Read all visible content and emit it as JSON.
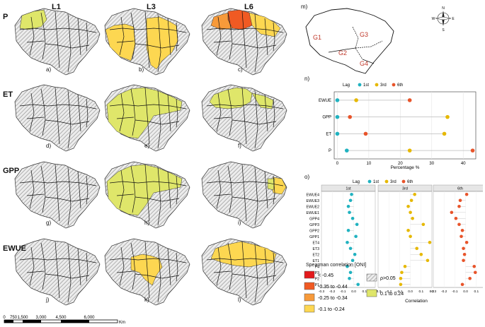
{
  "columns": [
    "L1",
    "L3",
    "L6"
  ],
  "rows": [
    "P",
    "ET",
    "GPP",
    "EWUE"
  ],
  "panel_letters": [
    "a)",
    "b)",
    "c)",
    "d)",
    "e)",
    "f)",
    "g)",
    "h)",
    "i)",
    "j)",
    "k)",
    "l)"
  ],
  "map_fills": [
    [
      "lightyellow-northwest",
      "yellow-west-central",
      "orange-north"
    ],
    [
      "none",
      "lightyellow-large",
      "lightyellow-north"
    ],
    [
      "none",
      "lightyellow-large",
      "yellow-northeast"
    ],
    [
      "none",
      "yellow-central",
      "yellow-north"
    ]
  ],
  "region_map": {
    "title": "m)",
    "regions": [
      "G1",
      "G2",
      "G3",
      "G4"
    ],
    "compass": [
      "N",
      "E",
      "S",
      "W"
    ]
  },
  "scale_bar": {
    "ticks": [
      "0",
      "750",
      "1,500",
      "3,000",
      "4,500",
      "6,000"
    ],
    "unit": "Km"
  },
  "colors": {
    "lag1": "#20b2c0",
    "lag3": "#e6b800",
    "lag6": "#e8542a",
    "lt045": "#e31a1c",
    "c035": "#f05a23",
    "c025": "#f79a3a",
    "c01": "#fdd751",
    "pos": "#dfe66a",
    "gray": "#d0d0d0"
  },
  "legend": {
    "title": "Spearman correlation [ONI]",
    "items": [
      {
        "label": "< -0.45",
        "color": "#e31a1c"
      },
      {
        "label": "-0.35 to -0.44",
        "color": "#f05a23"
      },
      {
        "label": "-0.25 to -0.34",
        "color": "#f79a3a"
      },
      {
        "label": "-0.1 to -0.24",
        "color": "#fdd751"
      },
      {
        "label": "ρ>0.05",
        "color": "hatch"
      },
      {
        "label": "0.1 to 0.24",
        "color": "#dfe66a"
      }
    ]
  },
  "chart_n": {
    "panel": "n)",
    "legend_title": "Lag",
    "lag_names": [
      "1st",
      "3rd",
      "6th"
    ],
    "xlabel": "Percentage %"
  },
  "chart_o": {
    "panel": "o)",
    "legend_title": "Lag",
    "lag_names": [
      "1st",
      "3rd",
      "6th"
    ],
    "facets": [
      "1st",
      "3rd",
      "6th"
    ],
    "xlabel": "Correlation",
    "xtick_labels": [
      "-0.3",
      "-0.2",
      "-0.1",
      "0.0",
      "0.1",
      "0.2"
    ]
  },
  "chart_data": [
    {
      "type": "scatter",
      "categories": [
        "EWUE",
        "GPP",
        "ET",
        "P"
      ],
      "series": [
        {
          "name": "1st",
          "values": [
            0,
            0,
            0,
            3
          ]
        },
        {
          "name": "3rd",
          "values": [
            6,
            35,
            34,
            23
          ]
        },
        {
          "name": "6th",
          "values": [
            23,
            4,
            9,
            43
          ]
        }
      ],
      "xlim": [
        -1,
        44
      ],
      "xticks": [
        0,
        10,
        20,
        30,
        40
      ],
      "xlabel": "Percentage %",
      "grid": true,
      "legend": "top"
    },
    {
      "type": "scatter",
      "categories": [
        "EWUE4",
        "EWUE3",
        "EWUE2",
        "EWUE1",
        "GPP4",
        "GPP3",
        "GPP2",
        "GPP1",
        "ET4",
        "ET3",
        "ET2",
        "ET1",
        "P4",
        "P3",
        "P2",
        "P1"
      ],
      "facets": [
        "1st",
        "3rd",
        "6th"
      ],
      "series": [
        {
          "name": "1st",
          "values": [
            -0.02,
            -0.03,
            -0.05,
            -0.04,
            -0.01,
            0.03,
            -0.05,
            0.02,
            -0.06,
            -0.03,
            0.01,
            -0.01,
            -0.06,
            -0.03,
            -0.04,
            0.04
          ]
        },
        {
          "name": "3rd",
          "values": [
            0.04,
            0.01,
            -0.02,
            0.0,
            0.02,
            0.12,
            -0.02,
            0.0,
            0.18,
            0.06,
            0.1,
            0.16,
            -0.05,
            -0.08,
            -0.09,
            -0.09
          ]
        },
        {
          "name": "6th",
          "values": [
            0.01,
            -0.05,
            -0.06,
            -0.13,
            -0.09,
            -0.06,
            -0.03,
            -0.04,
            0.01,
            -0.02,
            -0.01,
            -0.02,
            0.08,
            0.09,
            0.04,
            -0.03
          ]
        }
      ],
      "xlim": [
        -0.3,
        0.2
      ],
      "xlabel": "Correlation",
      "grid": true,
      "legend": "top"
    }
  ]
}
